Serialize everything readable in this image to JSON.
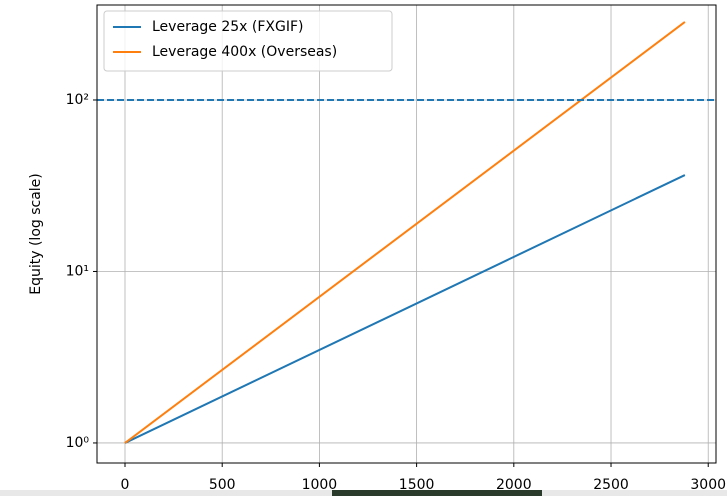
{
  "chart_data": {
    "type": "line",
    "ylabel": "Equity (log scale)",
    "x": [
      0,
      2880
    ],
    "series": [
      {
        "name": "Leverage 25x (FXGIF)",
        "color": "#1f77b4",
        "values": [
          1,
          36.5
        ]
      },
      {
        "name": "Leverage 400x (Overseas)",
        "color": "#ff7f0e",
        "values": [
          1,
          285
        ]
      }
    ],
    "hline": {
      "value": 100,
      "color": "#1f77b4",
      "dashed": true
    },
    "xlim": [
      -144,
      3040
    ],
    "xticks": [
      0,
      500,
      1000,
      1500,
      2000,
      2500,
      3000
    ],
    "ylim": [
      0.764,
      358
    ],
    "yticks": [
      {
        "value": 1,
        "label": "10⁰"
      },
      {
        "value": 10,
        "label": "10¹"
      },
      {
        "value": 100,
        "label": "10²"
      }
    ],
    "log_y": true,
    "grid": true,
    "legend": "upper-left"
  }
}
